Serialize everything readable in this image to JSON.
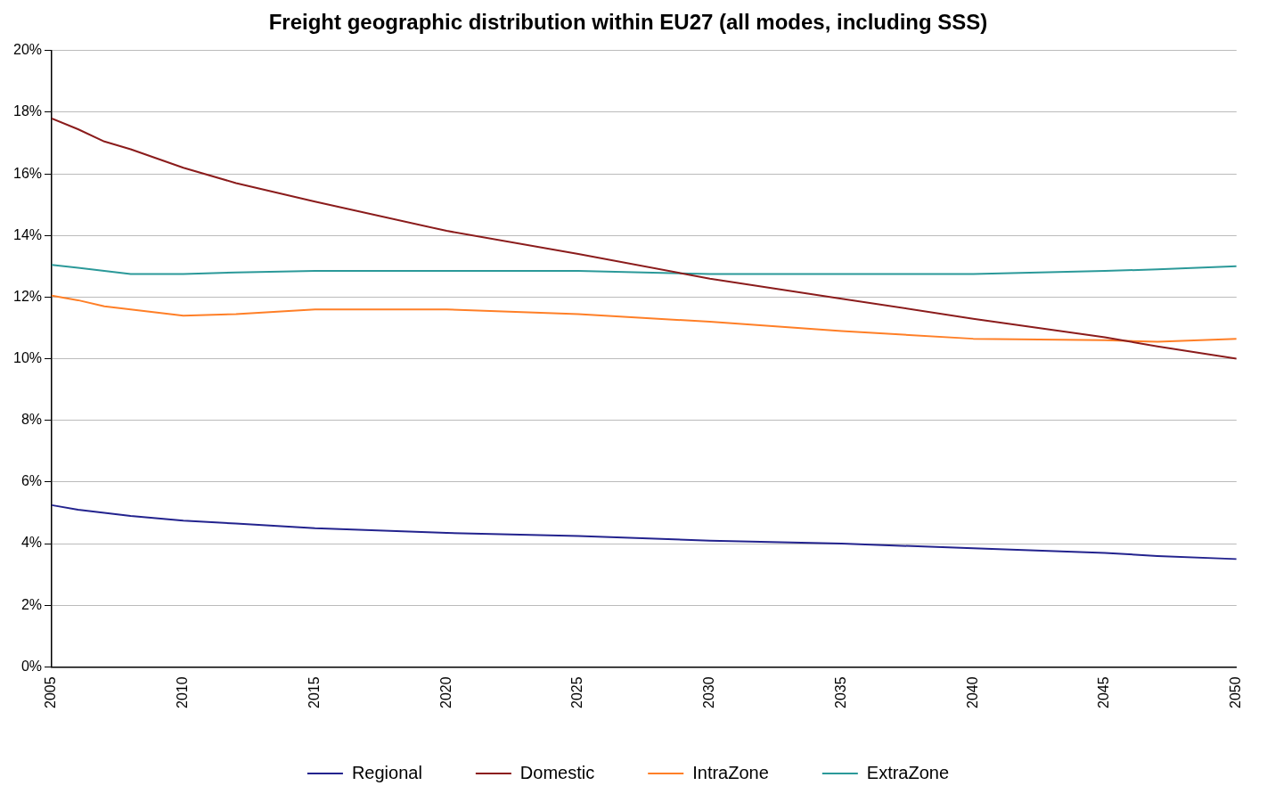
{
  "chart_data": {
    "type": "line",
    "title": "Freight geographic distribution within EU27 (all modes, including SSS)",
    "x": [
      2005,
      2006,
      2007,
      2008,
      2010,
      2012,
      2015,
      2020,
      2025,
      2030,
      2035,
      2040,
      2045,
      2047,
      2050
    ],
    "series": [
      {
        "name": "Regional",
        "color": "#23238e",
        "values": [
          5.25,
          5.1,
          5.0,
          4.9,
          4.75,
          4.65,
          4.5,
          4.35,
          4.25,
          4.1,
          4.0,
          3.85,
          3.7,
          3.6,
          3.5
        ]
      },
      {
        "name": "Domestic",
        "color": "#8b1c1c",
        "values": [
          17.8,
          17.45,
          17.05,
          16.8,
          16.2,
          15.7,
          15.1,
          14.15,
          13.4,
          12.6,
          11.95,
          11.3,
          10.7,
          10.4,
          10.0
        ]
      },
      {
        "name": "IntraZone",
        "color": "#ff7f27",
        "values": [
          12.05,
          11.9,
          11.7,
          11.6,
          11.4,
          11.45,
          11.6,
          11.6,
          11.45,
          11.2,
          10.9,
          10.65,
          10.6,
          10.55,
          10.65
        ]
      },
      {
        "name": "ExtraZone",
        "color": "#2b9999",
        "values": [
          13.05,
          12.95,
          12.85,
          12.75,
          12.75,
          12.8,
          12.85,
          12.85,
          12.85,
          12.75,
          12.75,
          12.75,
          12.85,
          12.9,
          13.0
        ]
      }
    ],
    "xlim": [
      2005,
      2050
    ],
    "xticks": [
      2005,
      2010,
      2015,
      2020,
      2025,
      2030,
      2035,
      2040,
      2045,
      2050
    ],
    "ylim": [
      0,
      20
    ],
    "yticks": [
      {
        "value": 0,
        "label": "0%"
      },
      {
        "value": 2,
        "label": "2%"
      },
      {
        "value": 4,
        "label": "4%"
      },
      {
        "value": 6,
        "label": "6%"
      },
      {
        "value": 8,
        "label": "8%"
      },
      {
        "value": 10,
        "label": "10%"
      },
      {
        "value": 12,
        "label": "12%"
      },
      {
        "value": 14,
        "label": "14%"
      },
      {
        "value": 16,
        "label": "16%"
      },
      {
        "value": 18,
        "label": "18%"
      },
      {
        "value": 20,
        "label": "20%"
      }
    ],
    "grid": "y",
    "legend": "bottom",
    "marker": "none",
    "line_style": "solid"
  }
}
